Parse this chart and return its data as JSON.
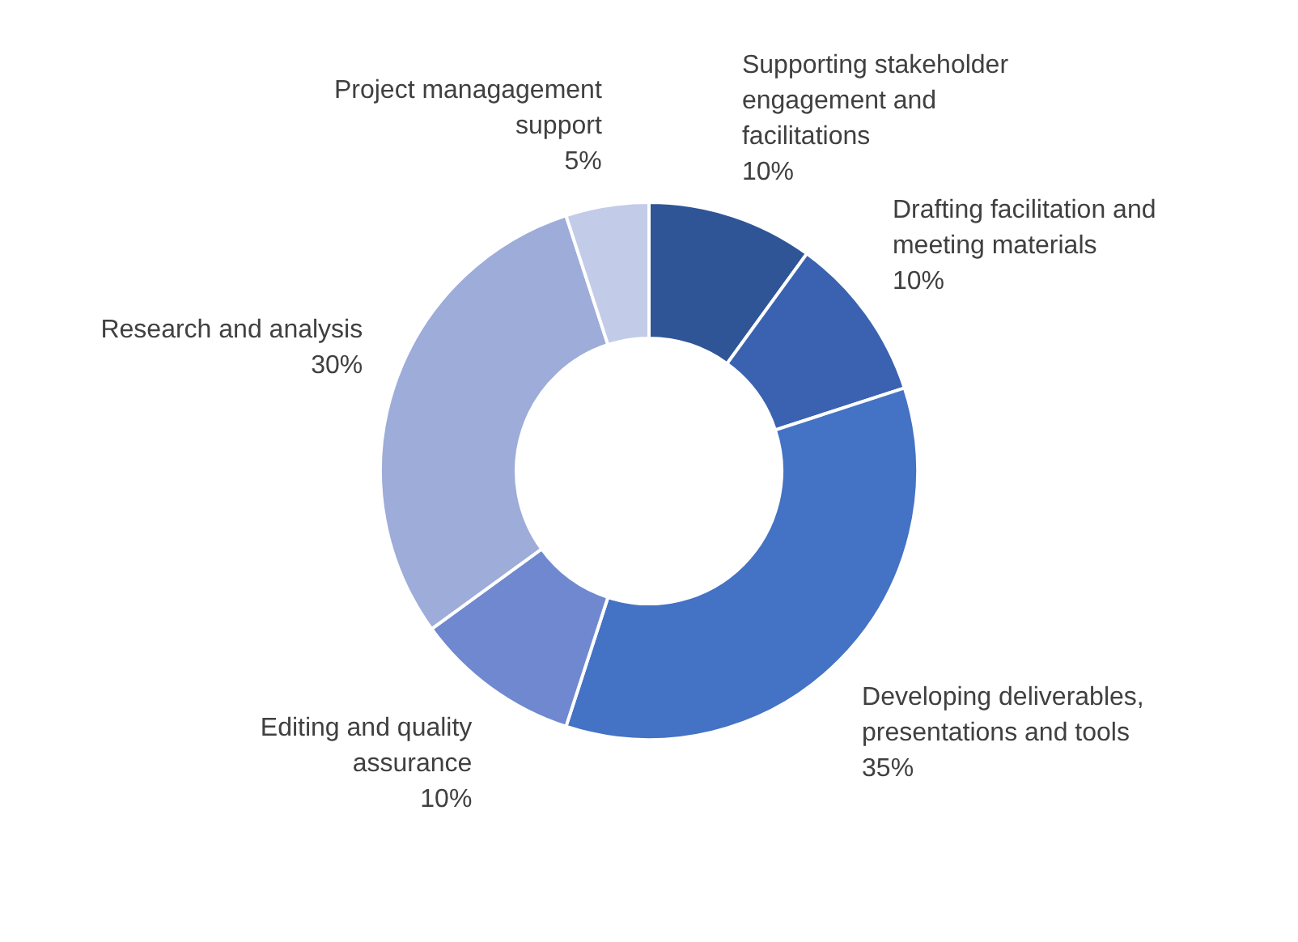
{
  "chart_data": {
    "type": "donut",
    "categories": [
      "Supporting stakeholder engagement and facilitations",
      "Drafting facilitation and meeting materials",
      "Developing deliverables, presentations and tools",
      "Editing and quality assurance",
      "Research and analysis",
      "Project managagement support"
    ],
    "values": [
      10,
      10,
      35,
      10,
      30,
      5
    ],
    "value_labels": [
      "10%",
      "10%",
      "35%",
      "10%",
      "30%",
      "5%"
    ],
    "colors": [
      "#2f5597",
      "#3a62b0",
      "#4472c4",
      "#6f88cf",
      "#9dacd9",
      "#c2cbe8"
    ]
  }
}
